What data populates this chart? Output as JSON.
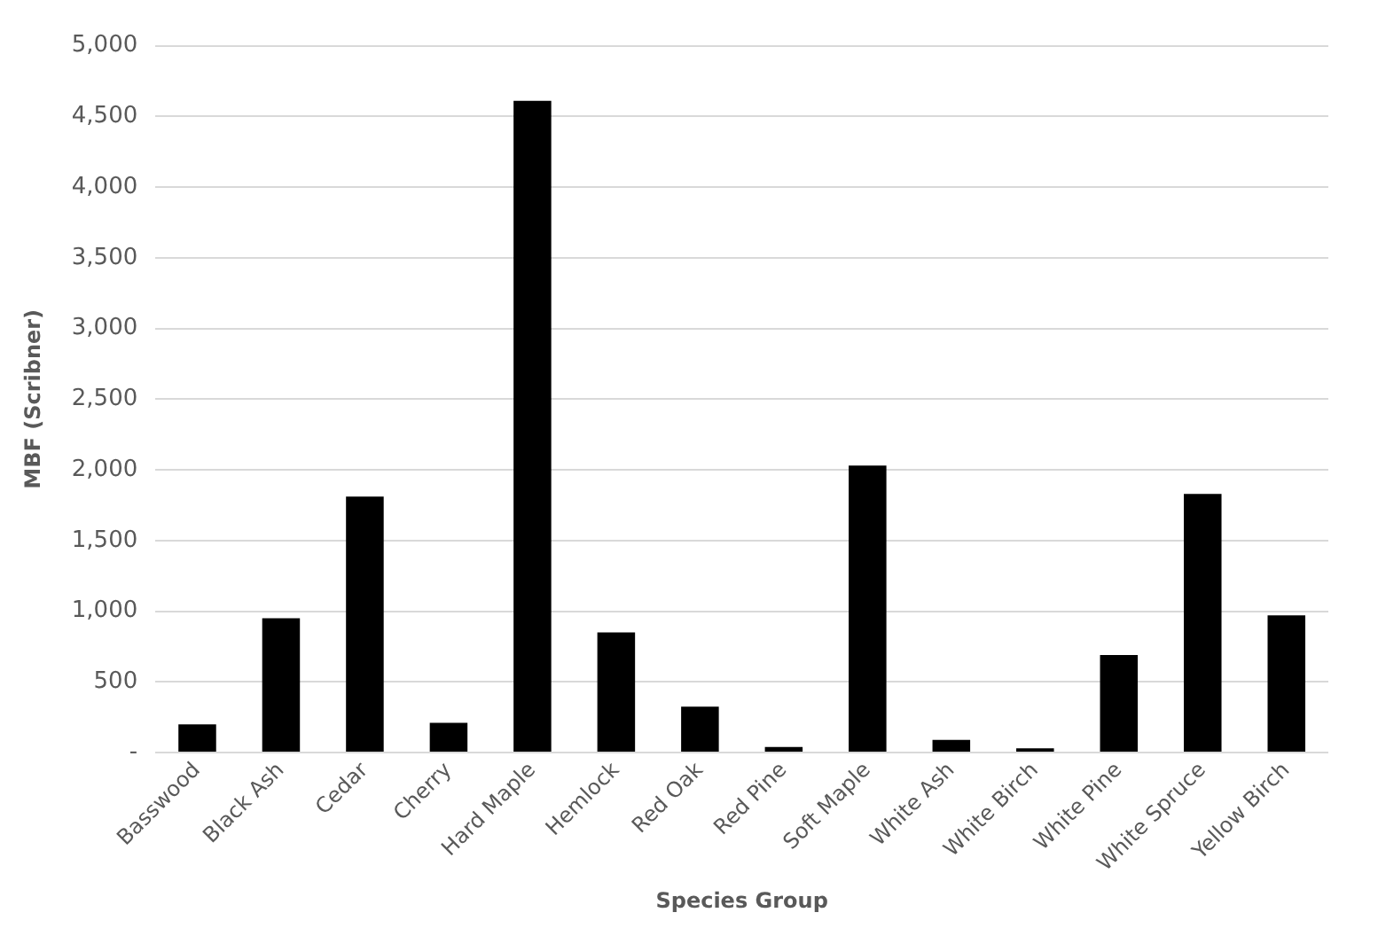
{
  "chart_data": {
    "type": "bar",
    "xlabel": "Species Group",
    "ylabel": "MBF (Scribner)",
    "categories": [
      "Basswood",
      "Black Ash",
      "Cedar",
      "Cherry",
      "Hard Maple",
      "Hemlock",
      "Red Oak",
      "Red Pine",
      "Soft Maple",
      "White Ash",
      "White Birch",
      "White Pine",
      "White Spruce",
      "Yellow Birch"
    ],
    "values": [
      200,
      950,
      1810,
      210,
      4610,
      850,
      325,
      40,
      2030,
      90,
      30,
      690,
      1830,
      970
    ],
    "color": "#000000",
    "ylim": [
      0,
      5000
    ],
    "yticks": [
      {
        "value": 0,
        "label": "-"
      },
      {
        "value": 500,
        "label": "500"
      },
      {
        "value": 1000,
        "label": "1,000"
      },
      {
        "value": 1500,
        "label": "1,500"
      },
      {
        "value": 2000,
        "label": "2,000"
      },
      {
        "value": 2500,
        "label": "2,500"
      },
      {
        "value": 3000,
        "label": "3,000"
      },
      {
        "value": 3500,
        "label": "3,500"
      },
      {
        "value": 4000,
        "label": "4,000"
      },
      {
        "value": 4500,
        "label": "4,500"
      },
      {
        "value": 5000,
        "label": "5,000"
      }
    ],
    "grid": "y",
    "legend": false
  }
}
